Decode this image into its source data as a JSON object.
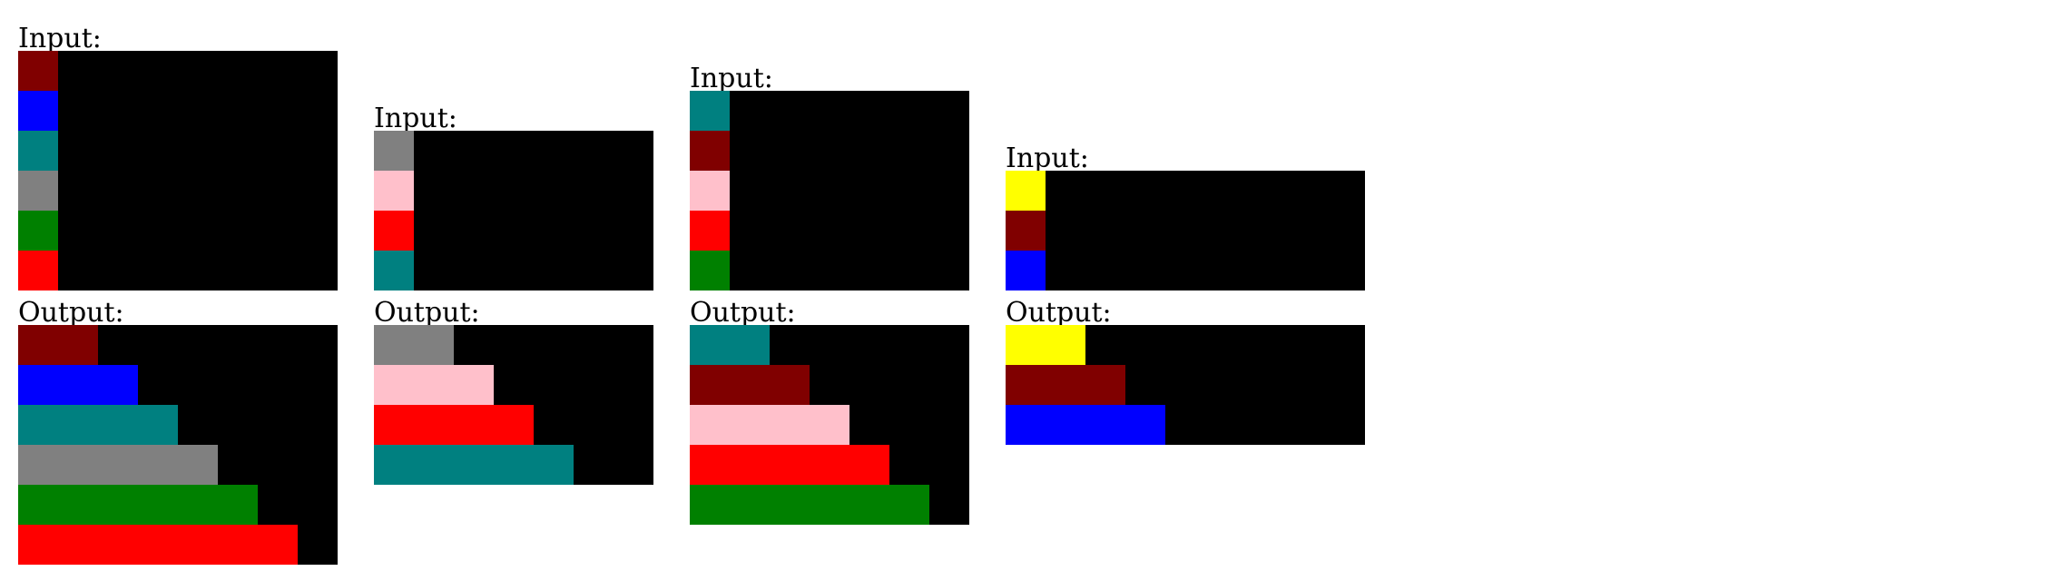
{
  "input_label": "Input:",
  "output_label": "Output:",
  "palette": {
    "black": "#000000",
    "maroon": "#800000",
    "blue": "#0000FF",
    "teal": "#008080",
    "gray": "#808080",
    "green": "#008000",
    "red": "#FF0000",
    "pink": "#FFC0CB",
    "yellow": "#FFFF00"
  },
  "examples": [
    {
      "input": {
        "rows": 6,
        "cols": 8,
        "column0": [
          "maroon",
          "blue",
          "teal",
          "gray",
          "green",
          "red"
        ]
      },
      "output": {
        "rows": 6,
        "cols": 8,
        "bars": [
          {
            "color": "maroon",
            "length": 2
          },
          {
            "color": "blue",
            "length": 3
          },
          {
            "color": "teal",
            "length": 4
          },
          {
            "color": "gray",
            "length": 5
          },
          {
            "color": "green",
            "length": 6
          },
          {
            "color": "red",
            "length": 7
          }
        ]
      }
    },
    {
      "input": {
        "rows": 4,
        "cols": 7,
        "column0": [
          "gray",
          "pink",
          "red",
          "teal"
        ]
      },
      "output": {
        "rows": 4,
        "cols": 7,
        "bars": [
          {
            "color": "gray",
            "length": 2
          },
          {
            "color": "pink",
            "length": 3
          },
          {
            "color": "red",
            "length": 4
          },
          {
            "color": "teal",
            "length": 5
          }
        ]
      }
    },
    {
      "input": {
        "rows": 5,
        "cols": 7,
        "column0": [
          "teal",
          "maroon",
          "pink",
          "red",
          "green"
        ]
      },
      "output": {
        "rows": 5,
        "cols": 7,
        "bars": [
          {
            "color": "teal",
            "length": 2
          },
          {
            "color": "maroon",
            "length": 3
          },
          {
            "color": "pink",
            "length": 4
          },
          {
            "color": "red",
            "length": 5
          },
          {
            "color": "green",
            "length": 6
          }
        ]
      }
    },
    {
      "input": {
        "rows": 3,
        "cols": 9,
        "column0": [
          "yellow",
          "maroon",
          "blue"
        ]
      },
      "output": {
        "rows": 3,
        "cols": 9,
        "bars": [
          {
            "color": "yellow",
            "length": 2
          },
          {
            "color": "maroon",
            "length": 3
          },
          {
            "color": "blue",
            "length": 4
          }
        ]
      }
    }
  ]
}
